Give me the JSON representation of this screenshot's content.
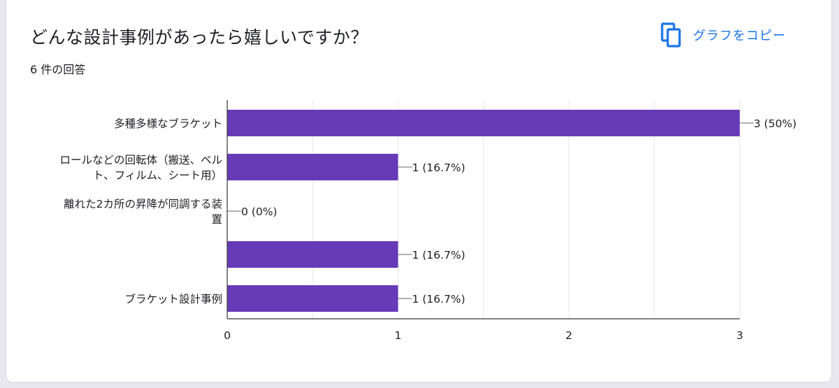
{
  "question": {
    "title": "どんな設計事例があったら嬉しいですか？",
    "response_count": "6 件の回答"
  },
  "toolbar": {
    "copy_label": "グラフをコピー",
    "copy_icon": "copy-icon"
  },
  "colors": {
    "bar": "#673ab7",
    "grid": "#e6e6e6",
    "axis": "#333333",
    "accent": "#1a73e8"
  },
  "chart_data": {
    "type": "bar",
    "orientation": "horizontal",
    "categories": [
      [
        "多種多様なブラケット"
      ],
      [
        "ロールなどの回転体（搬送、ベル",
        "ト、フィルム、シート用）"
      ],
      [
        "離れた2カ所の昇降が同調する装",
        "置"
      ],
      [
        ""
      ],
      [
        "ブラケット設計事例"
      ]
    ],
    "values": [
      3,
      1,
      0,
      1,
      1
    ],
    "value_labels": [
      "3 (50%)",
      "1 (16.7%)",
      "0 (0%)",
      "1 (16.7%)",
      "1 (16.7%)"
    ],
    "xlim": [
      0,
      3
    ],
    "x_ticks": [
      0,
      1,
      2,
      3
    ],
    "x_tick_labels": [
      "0",
      "1",
      "2",
      "3"
    ],
    "grid": true,
    "legend": "none"
  }
}
